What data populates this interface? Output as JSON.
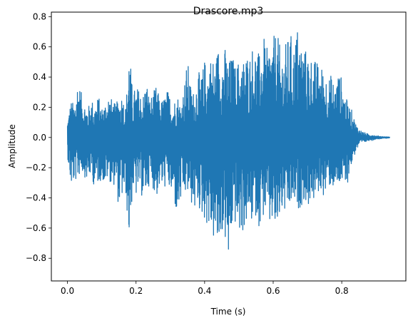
{
  "chart_data": {
    "type": "line",
    "title": "Drascore.mp3",
    "xlabel": "Time (s)",
    "ylabel": "Amplitude",
    "xlim": [
      -0.047,
      0.987
    ],
    "ylim": [
      -0.95,
      0.83
    ],
    "x_ticks": [
      0.0,
      0.2,
      0.4,
      0.6,
      0.8
    ],
    "x_tick_labels": [
      "0.0",
      "0.2",
      "0.4",
      "0.6",
      "0.8"
    ],
    "y_ticks": [
      -0.8,
      -0.6,
      -0.4,
      -0.2,
      0.0,
      0.2,
      0.4,
      0.6,
      0.8
    ],
    "y_tick_labels": [
      "−0.8",
      "−0.6",
      "−0.4",
      "−0.2",
      "0.0",
      "0.2",
      "0.4",
      "0.6",
      "0.8"
    ],
    "grid": false,
    "legend": "none",
    "colors": {
      "series": "#1f77b4",
      "axes": "#000000",
      "background": "#ffffff"
    },
    "series": [
      {
        "x": [
          0.0,
          0.01,
          0.02,
          0.03,
          0.04,
          0.05,
          0.06,
          0.07,
          0.08,
          0.09,
          0.1,
          0.11,
          0.12,
          0.13,
          0.14,
          0.15,
          0.16,
          0.17,
          0.18,
          0.19,
          0.2,
          0.21,
          0.22,
          0.23,
          0.24,
          0.25,
          0.26,
          0.27,
          0.28,
          0.29,
          0.3,
          0.31,
          0.32,
          0.33,
          0.34,
          0.35,
          0.36,
          0.37,
          0.38,
          0.39,
          0.4,
          0.41,
          0.42,
          0.43,
          0.44,
          0.45,
          0.46,
          0.47,
          0.48,
          0.49,
          0.5,
          0.51,
          0.52,
          0.53,
          0.54,
          0.55,
          0.56,
          0.57,
          0.58,
          0.59,
          0.6,
          0.61,
          0.62,
          0.63,
          0.64,
          0.65,
          0.66,
          0.67,
          0.68,
          0.69,
          0.7,
          0.71,
          0.72,
          0.73,
          0.74,
          0.75,
          0.76,
          0.77,
          0.78,
          0.79,
          0.8,
          0.81,
          0.82,
          0.83,
          0.84,
          0.85,
          0.86,
          0.87,
          0.88,
          0.89,
          0.9,
          0.91,
          0.92,
          0.93,
          0.94
        ],
        "max": [
          0.12,
          0.25,
          0.22,
          0.4,
          0.3,
          0.24,
          0.2,
          0.26,
          0.22,
          0.28,
          0.2,
          0.24,
          0.3,
          0.25,
          0.22,
          0.26,
          0.3,
          0.2,
          0.62,
          0.3,
          0.34,
          0.32,
          0.28,
          0.4,
          0.26,
          0.3,
          0.35,
          0.24,
          0.26,
          0.32,
          0.28,
          0.24,
          0.3,
          0.22,
          0.35,
          0.52,
          0.34,
          0.3,
          0.45,
          0.4,
          0.52,
          0.48,
          0.56,
          0.5,
          0.62,
          0.55,
          0.6,
          0.5,
          0.56,
          0.48,
          0.52,
          0.5,
          0.58,
          0.55,
          0.62,
          0.6,
          0.55,
          0.7,
          0.58,
          0.64,
          0.66,
          0.72,
          0.6,
          0.58,
          0.65,
          0.7,
          0.62,
          0.75,
          0.66,
          0.6,
          0.58,
          0.55,
          0.52,
          0.5,
          0.48,
          0.45,
          0.4,
          0.42,
          0.35,
          0.44,
          0.4,
          0.28,
          0.22,
          0.18,
          0.1,
          0.06,
          0.04,
          0.03,
          0.02,
          0.02,
          0.01,
          0.01,
          0.005,
          0.005,
          0.003
        ],
        "min": [
          -0.12,
          -0.34,
          -0.3,
          -0.28,
          -0.22,
          -0.26,
          -0.3,
          -0.24,
          -0.36,
          -0.3,
          -0.28,
          -0.32,
          -0.26,
          -0.34,
          -0.3,
          -0.48,
          -0.4,
          -0.38,
          -0.7,
          -0.36,
          -0.4,
          -0.34,
          -0.42,
          -0.38,
          -0.3,
          -0.34,
          -0.4,
          -0.32,
          -0.36,
          -0.3,
          -0.38,
          -0.42,
          -0.55,
          -0.45,
          -0.4,
          -0.38,
          -0.44,
          -0.5,
          -0.46,
          -0.52,
          -0.55,
          -0.6,
          -0.65,
          -0.72,
          -0.78,
          -0.62,
          -0.7,
          -0.88,
          -0.62,
          -0.58,
          -0.66,
          -0.64,
          -0.6,
          -0.55,
          -0.58,
          -0.52,
          -0.6,
          -0.54,
          -0.5,
          -0.62,
          -0.56,
          -0.7,
          -0.52,
          -0.5,
          -0.55,
          -0.48,
          -0.44,
          -0.5,
          -0.46,
          -0.42,
          -0.48,
          -0.4,
          -0.44,
          -0.38,
          -0.36,
          -0.4,
          -0.34,
          -0.32,
          -0.36,
          -0.35,
          -0.3,
          -0.4,
          -0.26,
          -0.18,
          -0.1,
          -0.06,
          -0.04,
          -0.03,
          -0.02,
          -0.02,
          -0.01,
          -0.01,
          -0.005,
          -0.005,
          -0.003
        ]
      }
    ]
  }
}
